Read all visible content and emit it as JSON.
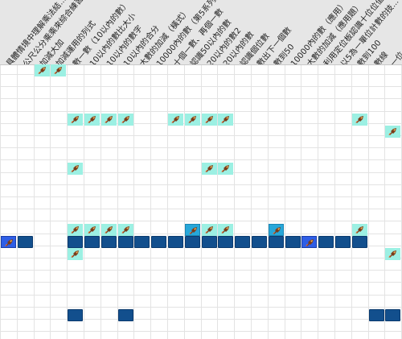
{
  "columns": [
    "具體情境中理解乘法結...",
    "公尺公分乘乘來綜合練習",
    "加減大加",
    "加減運用的列式",
    "數一數（10以內的數）",
    "10以內的數比大小",
    "10以內的數字",
    "10以內的合分",
    "大數的加減（橫式）",
    "10000內的數（第5系列）",
    "十個一數、再個一數",
    "認識50以內的數",
    "20以內的數2",
    "20以內的數",
    "認識個位數",
    "數出下一個數",
    "數到50",
    "10000內的數（應用）",
    "大數的加減（應用題）",
    "利用定位板認識十位位值",
    "以5為一單位計數的技...",
    "數到100",
    "數線",
    "一位..."
  ],
  "colors": {
    "header_bg": "#e6e6e6",
    "grid_line": "#e3e3e3",
    "teal_cell": "#9cf0e3",
    "dark_cell": "#124f8d",
    "highlight_cell": "#27a7d9",
    "selected_cell": "#2e5ee6"
  },
  "icons": {
    "cell_icon": "rocket-icon"
  },
  "cells": [
    {
      "row": 0,
      "col": 2,
      "type": "teal",
      "icon": true
    },
    {
      "row": 0,
      "col": 3,
      "type": "teal",
      "icon": true
    },
    {
      "row": 4,
      "col": 4,
      "type": "teal",
      "icon": true
    },
    {
      "row": 4,
      "col": 5,
      "type": "teal",
      "icon": true
    },
    {
      "row": 4,
      "col": 6,
      "type": "teal",
      "icon": true
    },
    {
      "row": 4,
      "col": 7,
      "type": "teal",
      "icon": true
    },
    {
      "row": 4,
      "col": 10,
      "type": "teal",
      "icon": true
    },
    {
      "row": 4,
      "col": 11,
      "type": "teal",
      "icon": true
    },
    {
      "row": 4,
      "col": 12,
      "type": "teal",
      "icon": true
    },
    {
      "row": 4,
      "col": 13,
      "type": "teal",
      "icon": true
    },
    {
      "row": 4,
      "col": 21,
      "type": "teal",
      "icon": true
    },
    {
      "row": 5,
      "col": 23,
      "type": "teal",
      "icon": true
    },
    {
      "row": 8,
      "col": 4,
      "type": "teal",
      "icon": true
    },
    {
      "row": 8,
      "col": 12,
      "type": "teal",
      "icon": true
    },
    {
      "row": 8,
      "col": 13,
      "type": "teal",
      "icon": true
    },
    {
      "row": 13,
      "col": 4,
      "type": "teal",
      "icon": true
    },
    {
      "row": 13,
      "col": 5,
      "type": "teal",
      "icon": true
    },
    {
      "row": 13,
      "col": 6,
      "type": "teal",
      "icon": true
    },
    {
      "row": 13,
      "col": 7,
      "type": "teal",
      "icon": true
    },
    {
      "row": 13,
      "col": 11,
      "type": "highlight",
      "icon": true
    },
    {
      "row": 13,
      "col": 12,
      "type": "teal",
      "icon": true
    },
    {
      "row": 13,
      "col": 13,
      "type": "teal",
      "icon": true
    },
    {
      "row": 13,
      "col": 16,
      "type": "highlight",
      "icon": true
    },
    {
      "row": 13,
      "col": 21,
      "type": "teal",
      "icon": true
    },
    {
      "row": 14,
      "col": 0,
      "type": "selected",
      "icon": true
    },
    {
      "row": 14,
      "col": 1,
      "type": "dark",
      "icon": false
    },
    {
      "row": 14,
      "col": 4,
      "type": "dark",
      "icon": false
    },
    {
      "row": 14,
      "col": 5,
      "type": "dark",
      "icon": false
    },
    {
      "row": 14,
      "col": 6,
      "type": "dark",
      "icon": false
    },
    {
      "row": 14,
      "col": 7,
      "type": "dark",
      "icon": false
    },
    {
      "row": 14,
      "col": 8,
      "type": "dark",
      "icon": false
    },
    {
      "row": 14,
      "col": 9,
      "type": "dark",
      "icon": false
    },
    {
      "row": 14,
      "col": 10,
      "type": "dark",
      "icon": false
    },
    {
      "row": 14,
      "col": 11,
      "type": "dark",
      "icon": false
    },
    {
      "row": 14,
      "col": 12,
      "type": "dark",
      "icon": false
    },
    {
      "row": 14,
      "col": 13,
      "type": "dark",
      "icon": false
    },
    {
      "row": 14,
      "col": 14,
      "type": "dark",
      "icon": false
    },
    {
      "row": 14,
      "col": 15,
      "type": "dark",
      "icon": false
    },
    {
      "row": 14,
      "col": 16,
      "type": "dark",
      "icon": false
    },
    {
      "row": 14,
      "col": 17,
      "type": "dark",
      "icon": false
    },
    {
      "row": 14,
      "col": 18,
      "type": "selected",
      "icon": true
    },
    {
      "row": 14,
      "col": 19,
      "type": "dark",
      "icon": false
    },
    {
      "row": 14,
      "col": 20,
      "type": "dark",
      "icon": false
    },
    {
      "row": 14,
      "col": 21,
      "type": "dark",
      "icon": false
    },
    {
      "row": 15,
      "col": 4,
      "type": "teal",
      "icon": true
    },
    {
      "row": 15,
      "col": 23,
      "type": "teal",
      "icon": true
    },
    {
      "row": 20,
      "col": 4,
      "type": "dark",
      "icon": false
    },
    {
      "row": 20,
      "col": 7,
      "type": "dark",
      "icon": false
    },
    {
      "row": 20,
      "col": 22,
      "type": "dark",
      "icon": false
    },
    {
      "row": 20,
      "col": 23,
      "type": "dark",
      "icon": false
    }
  ]
}
